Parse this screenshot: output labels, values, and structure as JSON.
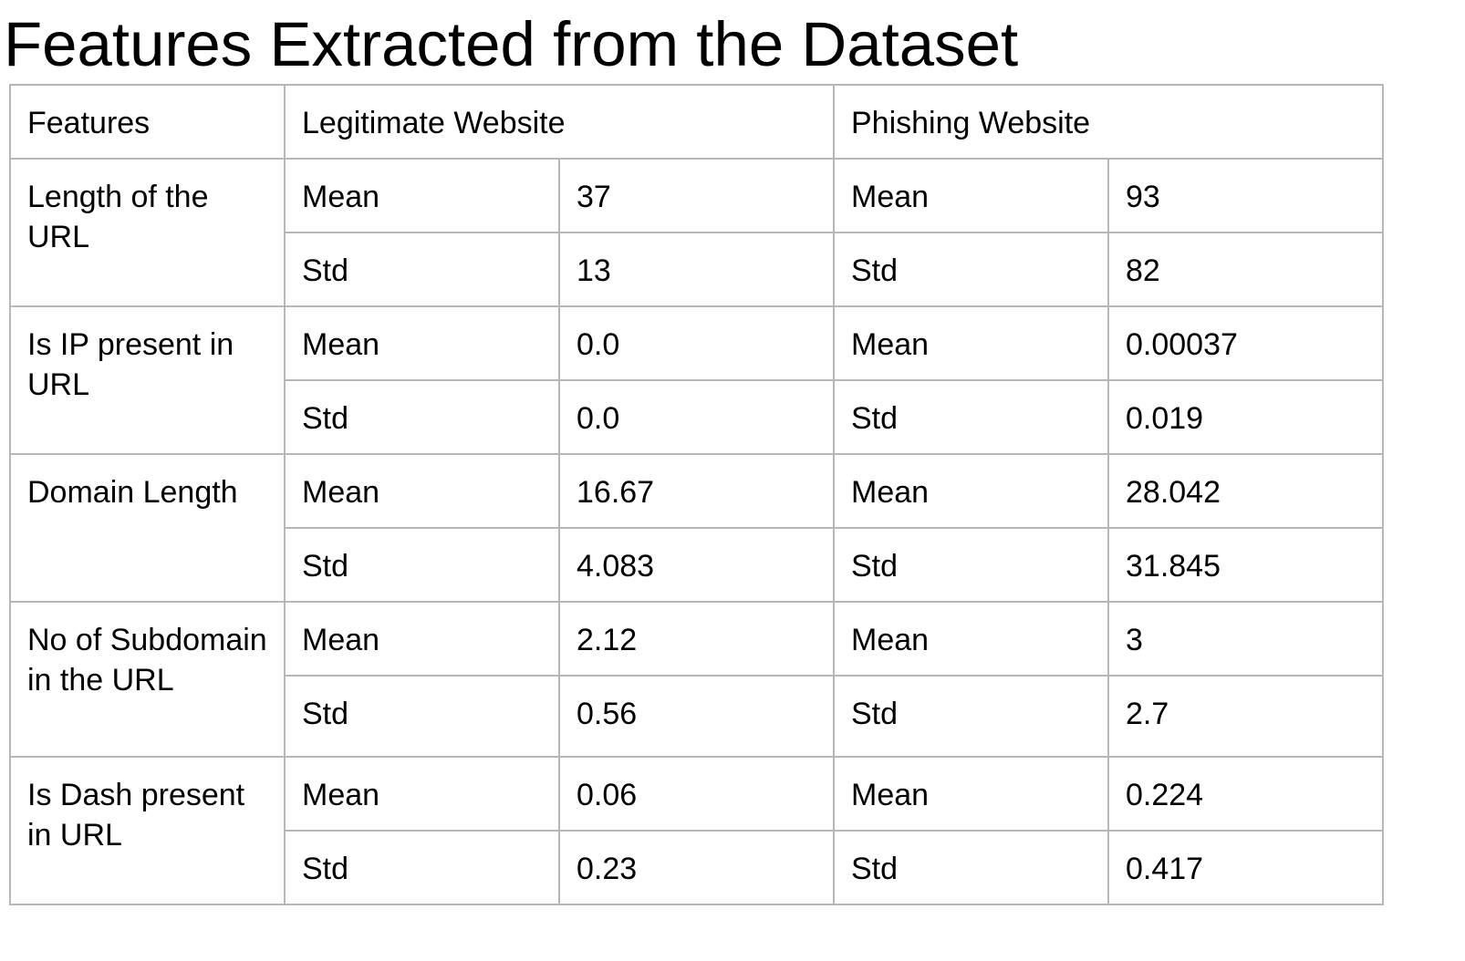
{
  "title": "Features Extracted from the Dataset",
  "header": {
    "features": "Features",
    "legitimate": "Legitimate Website",
    "phishing": "Phishing Website"
  },
  "rows": [
    {
      "feature": "Length of the URL",
      "legit_mean_label": "Mean",
      "legit_mean": "37",
      "phish_mean_label": "Mean",
      "phish_mean": "93",
      "legit_std_label": "Std",
      "legit_std": "13",
      "phish_std_label": "Std",
      "phish_std": "82"
    },
    {
      "feature": "Is IP present in URL",
      "legit_mean_label": "Mean",
      "legit_mean": "0.0",
      "phish_mean_label": "Mean",
      "phish_mean": "0.00037",
      "legit_std_label": "Std",
      "legit_std": "0.0",
      "phish_std_label": "Std",
      "phish_std": "0.019"
    },
    {
      "feature": "Domain Length",
      "legit_mean_label": "Mean",
      "legit_mean": "16.67",
      "phish_mean_label": "Mean",
      "phish_mean": "28.042",
      "legit_std_label": "Std",
      "legit_std": "4.083",
      "phish_std_label": "Std",
      "phish_std": "31.845"
    },
    {
      "feature": "No of Subdomain in the URL",
      "legit_mean_label": "Mean",
      "legit_mean": "2.12",
      "phish_mean_label": "Mean",
      "phish_mean": "3",
      "legit_std_label": "Std",
      "legit_std": "0.56",
      "phish_std_label": "Std",
      "phish_std": "2.7"
    },
    {
      "feature": "Is Dash present in URL",
      "legit_mean_label": "Mean",
      "legit_mean": "0.06",
      "phish_mean_label": "Mean",
      "phish_mean": "0.224",
      "legit_std_label": "Std",
      "legit_std": "0.23",
      "phish_std_label": "Std",
      "phish_std": "0.417"
    }
  ]
}
